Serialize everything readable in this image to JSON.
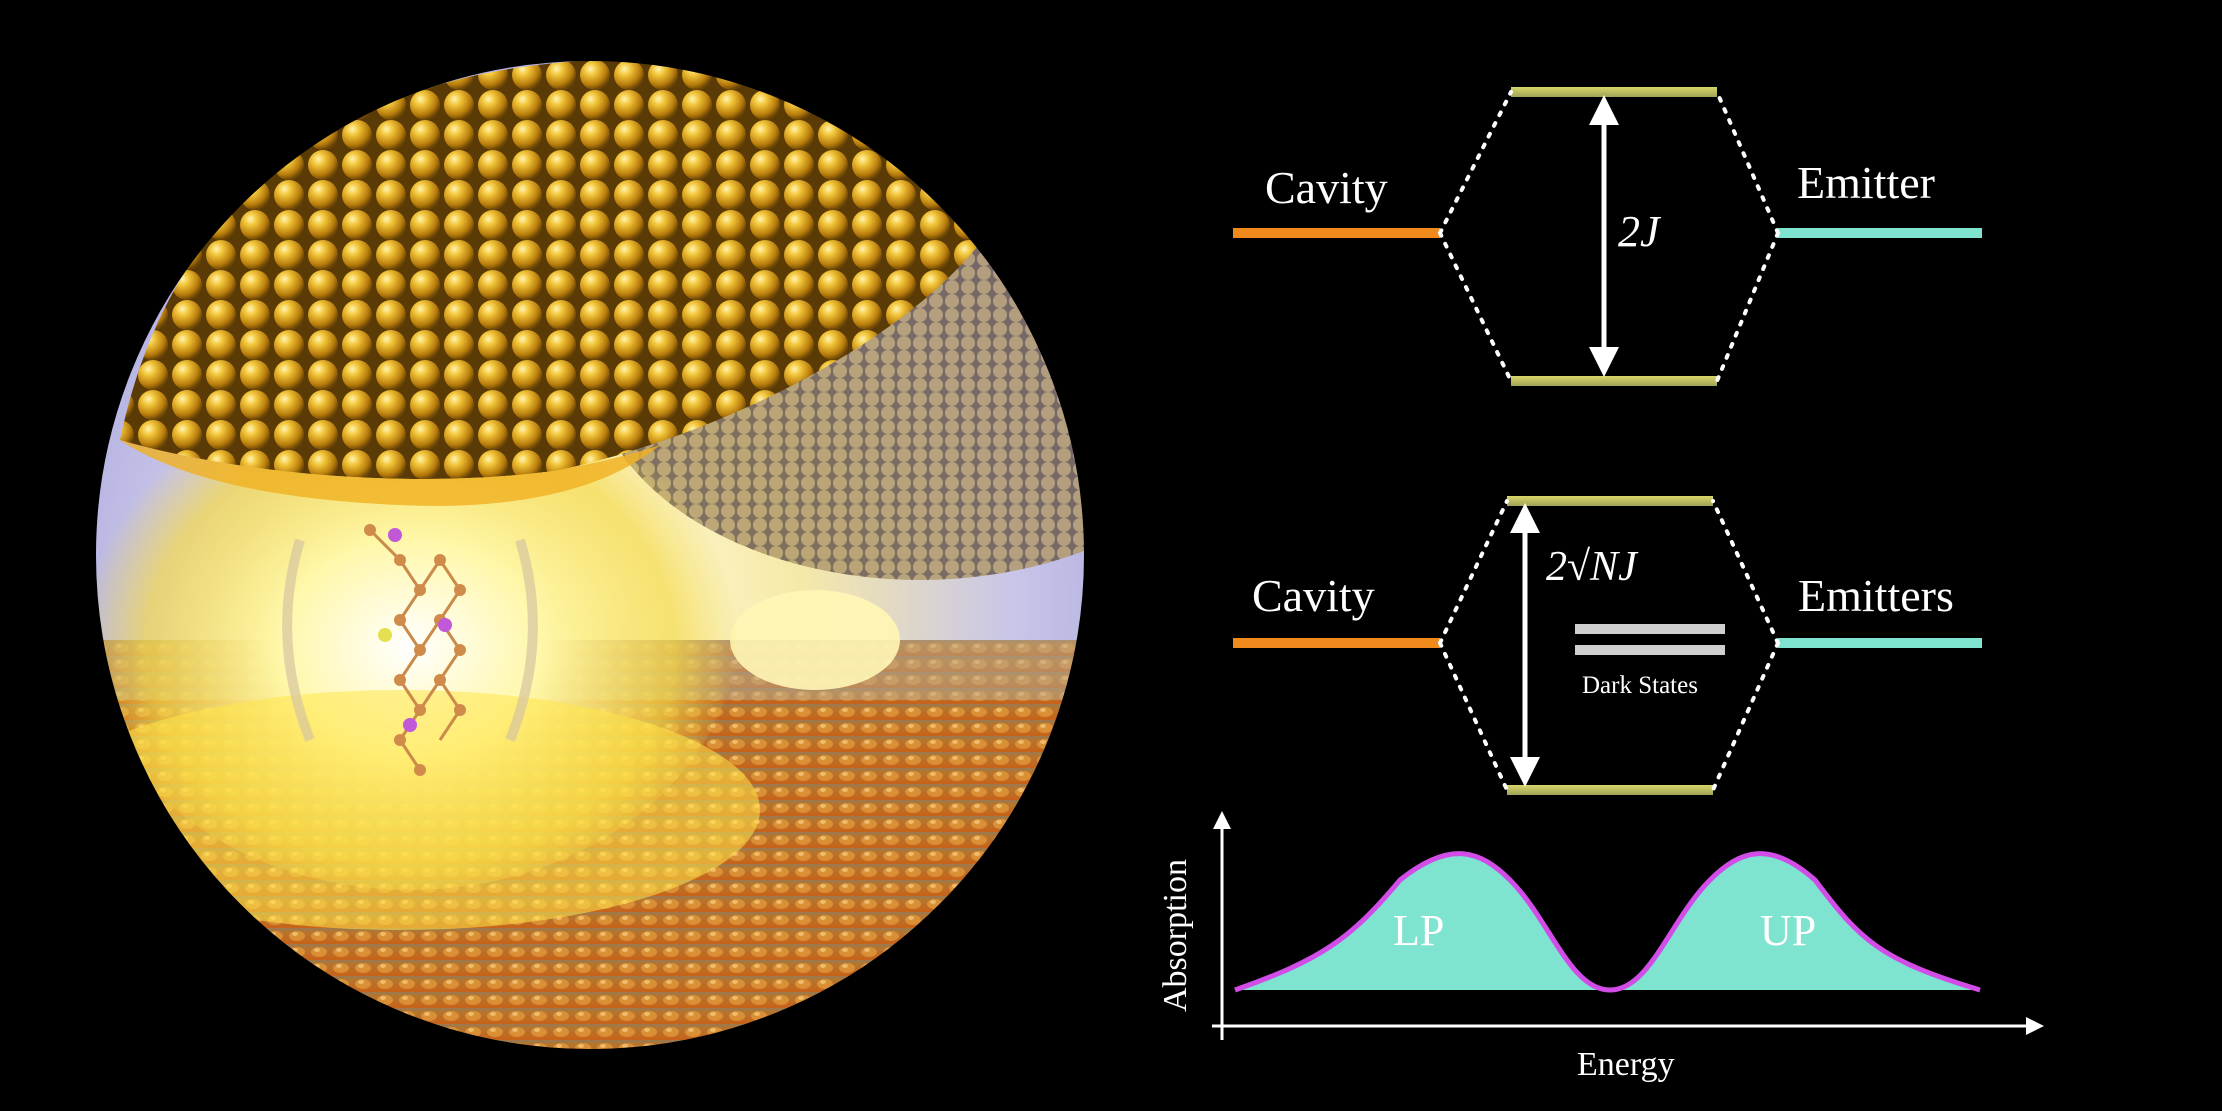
{
  "top_diagram": {
    "left_label": "Cavity",
    "right_label": "Emitter",
    "splitting_label": "2J",
    "cavity_color": "#f08a1c",
    "emitter_color": "#7ee3cf"
  },
  "middle_diagram": {
    "left_label": "Cavity",
    "right_label": "Emitters",
    "splitting_label": "2√NJ",
    "dark_states_label": "Dark States",
    "cavity_color": "#f08a1c",
    "emitter_color": "#7ee3cf",
    "dark_state_color": "#cfcfcf"
  },
  "absorption_plot": {
    "ylabel": "Absorption",
    "xlabel": "Energy",
    "peak_left_label": "LP",
    "peak_right_label": "UP",
    "fill_color": "#7ee3cf",
    "curve_color": "#d24ce8"
  },
  "illustration": {
    "polariton_level_color": "#b9bb62",
    "gold_color": "#d9a21b",
    "glow_color": "#fff38a"
  }
}
